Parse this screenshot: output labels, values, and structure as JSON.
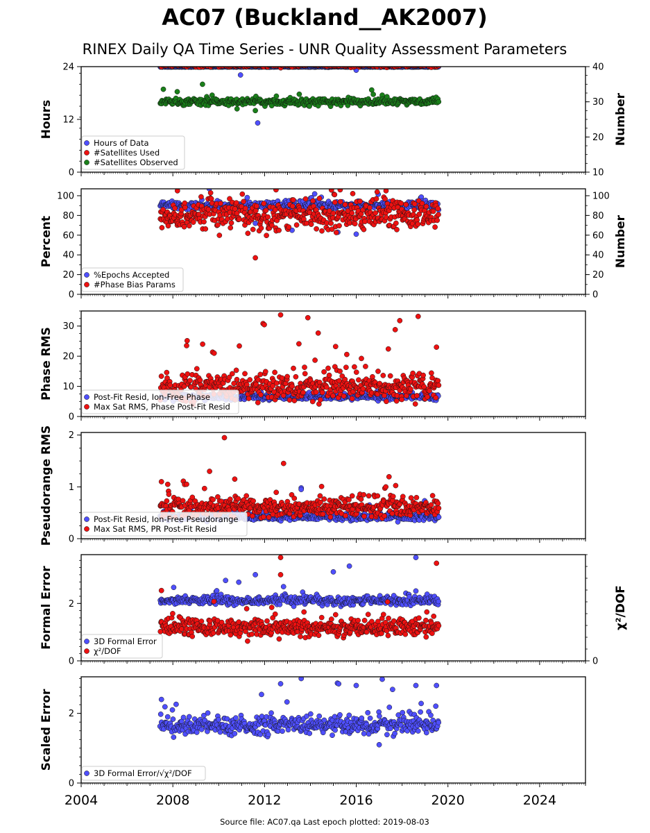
{
  "title": "AC07 (Buckland__AK2007)",
  "subtitle": "RINEX Daily QA Time Series - UNR Quality Assessment Parameters",
  "footer": "Source file: AC07.qa Last epoch plotted: 2019-08-03",
  "colors": {
    "blue": "#4f4fff",
    "red": "#ee1111",
    "green": "#1a801a"
  },
  "chart_data": [
    {
      "type": "scatter",
      "ylabel": "Hours",
      "ylabel_right": "Number",
      "ylim": [
        0,
        24
      ],
      "yticks": [
        "0",
        "12",
        "24"
      ],
      "ylim_right": [
        10,
        40
      ],
      "yticks_right": [
        "10",
        "20",
        "30",
        "40"
      ],
      "legend": [
        "Hours of Data",
        "#Satellites Used",
        "#Satellites Observed"
      ],
      "series": [
        {
          "name": "Hours of Data",
          "color": "blue",
          "axis": "left",
          "time_span": [
            2007.45,
            2019.59
          ],
          "typical": 23.95,
          "spread": 0.05,
          "outliers": [
            [
              2010.95,
              22.1
            ],
            [
              2016.0,
              23.2
            ],
            [
              2011.7,
              11.2
            ]
          ]
        },
        {
          "name": "#Satellites Used",
          "color": "red",
          "axis": "right",
          "time_span": [
            2007.45,
            2019.59
          ],
          "typical": 40.5,
          "spread": 0.5,
          "outliers": []
        },
        {
          "name": "#Satellites Observed",
          "color": "green",
          "axis": "right",
          "time_span": [
            2007.45,
            2019.59
          ],
          "typical": 30.0,
          "spread": 0.8,
          "outliers": [
            [
              2011.6,
              27.5
            ],
            [
              2010.8,
              28.0
            ]
          ]
        }
      ]
    },
    {
      "type": "scatter",
      "ylabel": "Percent",
      "ylabel_right": "Number",
      "ylim": [
        0,
        107
      ],
      "yticks": [
        "0",
        "20",
        "40",
        "60",
        "80",
        "100"
      ],
      "ylim_right": [
        0,
        107
      ],
      "yticks_right": [
        "0",
        "20",
        "40",
        "60",
        "80",
        "100"
      ],
      "legend": [
        "%Epochs Accepted",
        "#Phase Bias Params"
      ],
      "series": [
        {
          "name": "%Epochs Accepted",
          "color": "blue",
          "axis": "left",
          "time_span": [
            2007.45,
            2019.59
          ],
          "typical": 90,
          "spread": 3,
          "outliers": [
            [
              2013.2,
              65
            ],
            [
              2016.0,
              61
            ],
            [
              2015.2,
              63
            ],
            [
              2011.6,
              72
            ]
          ]
        },
        {
          "name": "#Phase Bias Params",
          "color": "red",
          "axis": "right",
          "time_span": [
            2007.45,
            2019.59
          ],
          "typical": 80,
          "spread": 12,
          "outliers": [
            [
              2011.6,
              37
            ],
            [
              2008.2,
              105
            ],
            [
              2012.5,
              106
            ],
            [
              2015.3,
              106
            ],
            [
              2017.3,
              105
            ]
          ]
        }
      ]
    },
    {
      "type": "scatter",
      "ylabel": "Phase RMS",
      "ylim": [
        0,
        35
      ],
      "yticks": [
        "0",
        "10",
        "20",
        "30"
      ],
      "legend": [
        "Post-Fit Resid, Ion-Free Phase",
        "Max Sat RMS, Phase Post-Fit Resid"
      ],
      "series": [
        {
          "name": "Post-Fit Resid, Ion-Free Phase",
          "color": "blue",
          "axis": "left",
          "time_span": [
            2007.45,
            2019.59
          ],
          "typical": 6.5,
          "spread": 0.8,
          "outliers": []
        },
        {
          "name": "Max Sat RMS, Phase Post-Fit Resid",
          "color": "red",
          "axis": "left",
          "time_span": [
            2007.45,
            2019.59
          ],
          "typical": 9.5,
          "spread": 3.5,
          "outliers": [
            [
              2012.7,
              33.7
            ],
            [
              2017.9,
              31.8
            ],
            [
              2018.7,
              33.2
            ],
            [
              2017.7,
              28.8
            ],
            [
              2013.5,
              24.1
            ],
            [
              2009.3,
              24.0
            ],
            [
              2008.6,
              23.5
            ],
            [
              2010.9,
              23.4
            ],
            [
              2015.1,
              23.2
            ],
            [
              2019.5,
              23.0
            ],
            [
              2017.4,
              22.4
            ],
            [
              2009.8,
              21.0
            ]
          ]
        }
      ]
    },
    {
      "type": "scatter",
      "ylabel": "Pseudorange RMS",
      "ylim": [
        0,
        2.05
      ],
      "yticks": [
        "0",
        "1",
        "2"
      ],
      "legend": [
        "Post-Fit Resid, Ion-Free Pseudorange",
        "Max Sat RMS, PR Post-Fit Resid"
      ],
      "series": [
        {
          "name": "Post-Fit Resid, Ion-Free Pseudorange",
          "color": "blue",
          "axis": "left",
          "time_span": [
            2007.45,
            2019.59
          ],
          "typical": 0.42,
          "spread": 0.06,
          "outliers": [
            [
              2013.6,
              0.98
            ],
            [
              2013.6,
              0.95
            ]
          ]
        },
        {
          "name": "Max Sat RMS, PR Post-Fit Resid",
          "color": "red",
          "axis": "left",
          "time_span": [
            2007.45,
            2019.59
          ],
          "typical": 0.6,
          "spread": 0.15,
          "outliers": [
            [
              2010.25,
              1.95
            ],
            [
              2009.6,
              1.3
            ],
            [
              2010.7,
              1.15
            ],
            [
              2007.5,
              1.1
            ],
            [
              2008.6,
              1.05
            ]
          ]
        }
      ]
    },
    {
      "type": "scatter",
      "ylabel": "Formal Error",
      "ylabel_right": "χ²/DOF",
      "ylim": [
        0,
        3.7
      ],
      "yticks": [
        "0",
        "2"
      ],
      "ylim_right": [
        0,
        4.5
      ],
      "yticks_right": [
        "0"
      ],
      "legend": [
        "3D Formal Error",
        "χ²/DOF"
      ],
      "series": [
        {
          "name": "3D Formal Error",
          "color": "blue",
          "axis": "left",
          "time_span": [
            2007.45,
            2019.59
          ],
          "typical": 2.1,
          "spread": 0.12,
          "outliers": [
            [
              2018.6,
              3.6
            ],
            [
              2015.7,
              3.3
            ],
            [
              2011.6,
              3.0
            ],
            [
              2010.3,
              2.8
            ],
            [
              2015.0,
              3.1
            ]
          ]
        },
        {
          "name": "χ²/DOF",
          "color": "red",
          "axis": "left",
          "time_span": [
            2007.45,
            2019.59
          ],
          "typical": 1.15,
          "spread": 0.25,
          "outliers": [
            [
              2012.7,
              3.6
            ],
            [
              2019.5,
              3.4
            ],
            [
              2012.7,
              3.0
            ],
            [
              2007.5,
              2.45
            ]
          ]
        }
      ]
    },
    {
      "type": "scatter",
      "ylabel": "Scaled Error",
      "ylim": [
        0,
        3.05
      ],
      "yticks": [
        "0",
        "2"
      ],
      "legend": [
        "3D Formal Error/√χ²/DOF"
      ],
      "series": [
        {
          "name": "3D Formal Error/√χ²/DOF",
          "color": "blue",
          "axis": "left",
          "time_span": [
            2007.45,
            2019.59
          ],
          "typical": 1.65,
          "spread": 0.2,
          "outliers": [
            [
              2013.6,
              3.0
            ],
            [
              2012.7,
              2.85
            ],
            [
              2016.0,
              2.8
            ],
            [
              2019.5,
              2.8
            ],
            [
              2018.6,
              2.8
            ],
            [
              2017.0,
              1.1
            ],
            [
              2007.5,
              2.4
            ]
          ]
        }
      ]
    }
  ],
  "xaxis": {
    "xlim": [
      2004,
      2026
    ],
    "ticks": [
      2004,
      2008,
      2012,
      2016,
      2020,
      2024
    ]
  }
}
